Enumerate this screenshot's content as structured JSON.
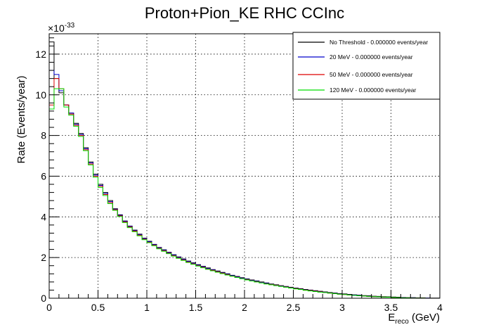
{
  "chart_data": {
    "type": "line",
    "style": "step-histogram",
    "title": "Proton+Pion_KE RHC CCInc",
    "xlabel_main": "E",
    "xlabel_sub": "reco",
    "xlabel_unit": " (GeV)",
    "ylabel": "Rate (Events/year)",
    "y_exponent_base": "×10",
    "y_exponent_power": "-33",
    "xlim": [
      0,
      4
    ],
    "ylim": [
      0,
      13
    ],
    "grid": true,
    "legend_position": "top-right",
    "x_ticks": [
      "0",
      "0.5",
      "1",
      "1.5",
      "2",
      "2.5",
      "3",
      "3.5",
      "4"
    ],
    "y_ticks": [
      "0",
      "2",
      "4",
      "6",
      "8",
      "10",
      "12"
    ],
    "bin_width": 0.05,
    "series": [
      {
        "name": "No Threshold - 0.000000 events/year",
        "color": "#000000",
        "values": [
          12.6,
          10.8,
          10.1,
          9.5,
          9.1,
          8.6,
          8.1,
          7.4,
          6.7,
          6.1,
          5.6,
          5.2,
          4.8,
          4.4,
          4.1,
          3.8,
          3.55,
          3.35,
          3.15,
          2.95,
          2.8,
          2.65,
          2.5,
          2.38,
          2.26,
          2.14,
          2.03,
          1.93,
          1.83,
          1.74,
          1.65,
          1.57,
          1.49,
          1.41,
          1.34,
          1.27,
          1.2,
          1.13,
          1.07,
          1.01,
          0.95,
          0.9,
          0.85,
          0.8,
          0.75,
          0.7,
          0.66,
          0.62,
          0.58,
          0.54,
          0.5,
          0.47,
          0.43,
          0.4,
          0.37,
          0.34,
          0.31,
          0.28,
          0.26,
          0.23,
          0.21,
          0.19,
          0.17,
          0.15,
          0.13,
          0.12,
          0.1,
          0.09,
          0.08,
          0.07,
          0.06,
          0.05,
          0.04,
          0.03,
          0.03,
          0.02,
          0.02,
          0.01,
          0.01,
          0.01
        ]
      },
      {
        "name": "20 MeV - 0.000000 events/year",
        "color": "#0000cc",
        "values": [
          11.2,
          11.0,
          10.2,
          9.5,
          9.1,
          8.55,
          8.05,
          7.35,
          6.65,
          6.05,
          5.55,
          5.15,
          4.75,
          4.38,
          4.08,
          3.78,
          3.53,
          3.33,
          3.13,
          2.93,
          2.78,
          2.63,
          2.48,
          2.36,
          2.24,
          2.12,
          2.01,
          1.91,
          1.81,
          1.72,
          1.63,
          1.55,
          1.47,
          1.39,
          1.32,
          1.25,
          1.18,
          1.11,
          1.05,
          0.99,
          0.93,
          0.88,
          0.83,
          0.78,
          0.73,
          0.68,
          0.64,
          0.6,
          0.56,
          0.52,
          0.48,
          0.45,
          0.41,
          0.38,
          0.35,
          0.32,
          0.29,
          0.26,
          0.24,
          0.21,
          0.19,
          0.17,
          0.15,
          0.13,
          0.11,
          0.1,
          0.08,
          0.07,
          0.06,
          0.05,
          0.04,
          0.03,
          0.03,
          0.02,
          0.02,
          0.01,
          0.01,
          0.01,
          0.0,
          0.0
        ]
      },
      {
        "name": "50 MeV - 0.000000 events/year",
        "color": "#dd0000",
        "values": [
          9.5,
          10.8,
          10.3,
          9.5,
          9.05,
          8.5,
          8.0,
          7.3,
          6.6,
          6.0,
          5.5,
          5.1,
          4.7,
          4.35,
          4.05,
          3.75,
          3.5,
          3.3,
          3.1,
          2.9,
          2.75,
          2.6,
          2.45,
          2.33,
          2.21,
          2.09,
          1.98,
          1.88,
          1.78,
          1.69,
          1.6,
          1.52,
          1.44,
          1.37,
          1.3,
          1.23,
          1.16,
          1.09,
          1.03,
          0.97,
          0.91,
          0.86,
          0.81,
          0.76,
          0.71,
          0.67,
          0.63,
          0.59,
          0.55,
          0.51,
          0.47,
          0.44,
          0.4,
          0.37,
          0.34,
          0.31,
          0.28,
          0.25,
          0.23,
          0.2,
          0.18,
          0.16,
          0.14,
          0.12,
          0.11,
          0.09,
          0.08,
          0.07,
          0.06,
          0.05,
          0.04,
          0.03,
          0.02,
          0.02,
          0.01,
          0.01,
          0.01,
          0.0,
          0.0,
          0.0
        ]
      },
      {
        "name": "120 MeV - 0.000000 events/year",
        "color": "#00dd00",
        "values": [
          9.3,
          10.3,
          10.3,
          9.4,
          9.0,
          8.45,
          7.95,
          7.25,
          6.55,
          5.95,
          5.45,
          5.05,
          4.65,
          4.32,
          4.02,
          3.72,
          3.47,
          3.27,
          3.07,
          2.88,
          2.73,
          2.58,
          2.43,
          2.31,
          2.19,
          2.07,
          1.96,
          1.86,
          1.76,
          1.67,
          1.58,
          1.5,
          1.42,
          1.35,
          1.28,
          1.21,
          1.14,
          1.08,
          1.02,
          0.96,
          0.9,
          0.85,
          0.8,
          0.75,
          0.7,
          0.66,
          0.62,
          0.58,
          0.54,
          0.5,
          0.46,
          0.43,
          0.39,
          0.36,
          0.33,
          0.3,
          0.28,
          0.25,
          0.23,
          0.2,
          0.18,
          0.16,
          0.14,
          0.12,
          0.11,
          0.09,
          0.08,
          0.07,
          0.06,
          0.05,
          0.04,
          0.03,
          0.02,
          0.02,
          0.01,
          0.01,
          0.01,
          0.0,
          0.0,
          0.0
        ]
      }
    ]
  }
}
